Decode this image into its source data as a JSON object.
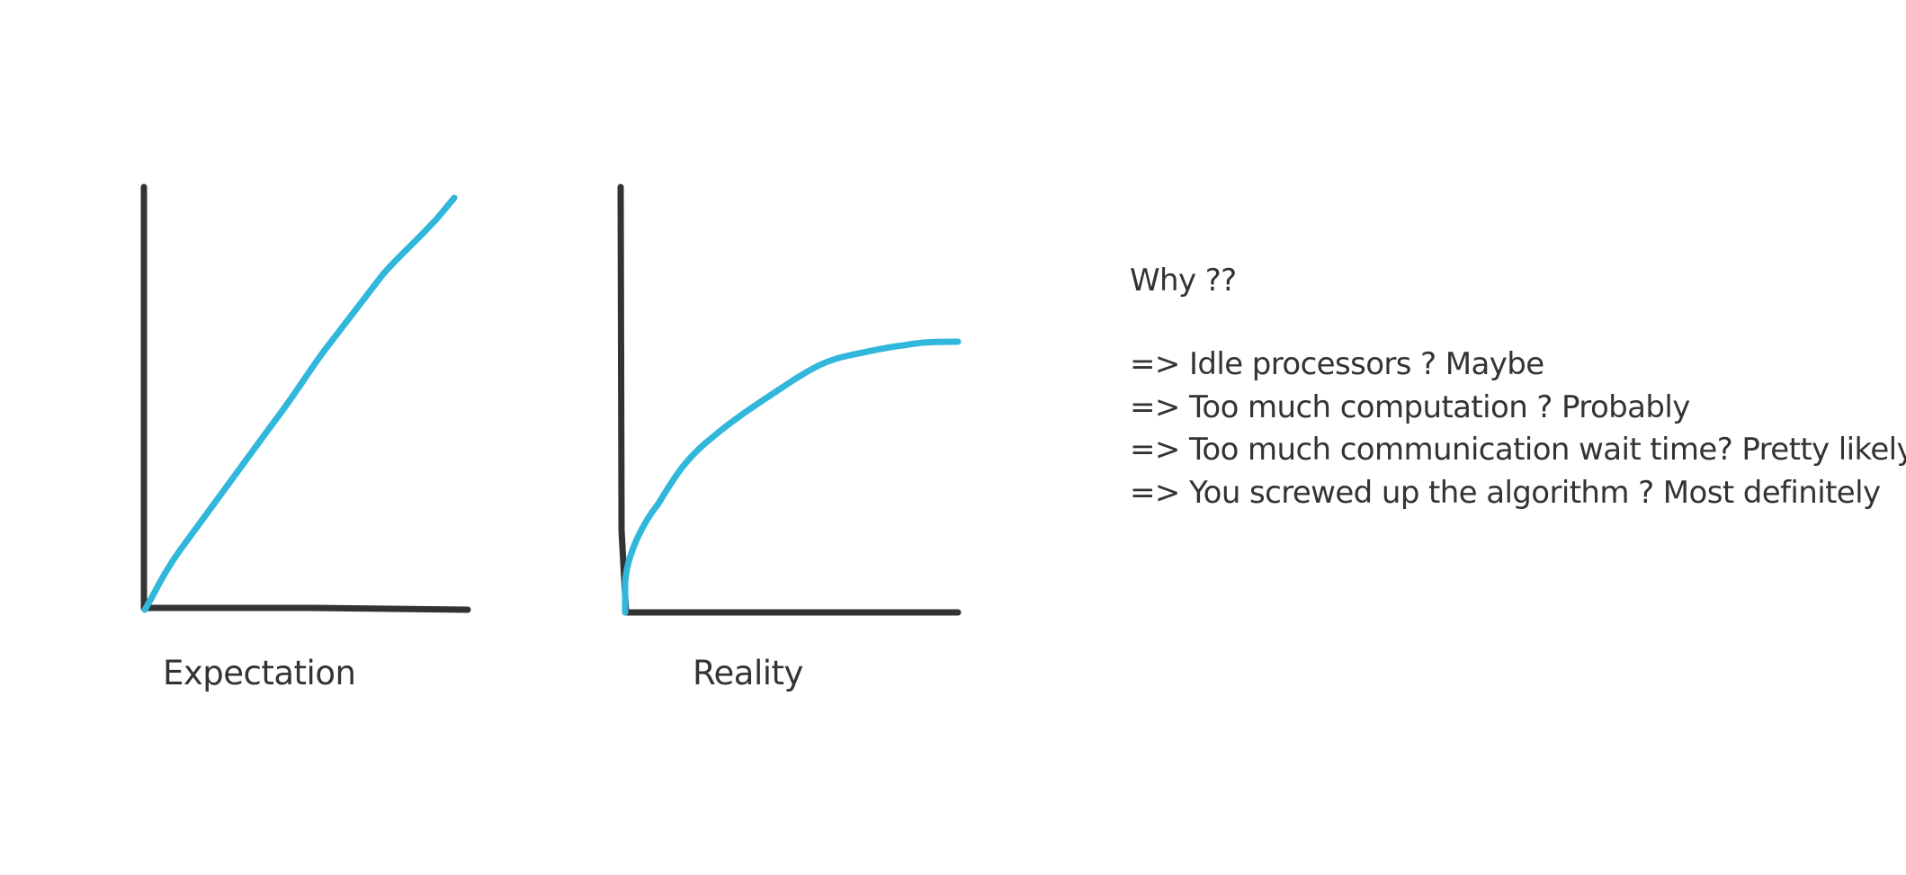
{
  "colors": {
    "ink": "#333333",
    "curve": "#31b7dc",
    "background": "#ffffff"
  },
  "panels": {
    "expectation": {
      "label": "Expectation",
      "curve_shape": "linear"
    },
    "reality": {
      "label": "Reality",
      "curve_shape": "saturating"
    }
  },
  "notes": {
    "title": "Why ??",
    "items": [
      "=> Idle processors ?  Maybe",
      "=> Too much computation ? Probably",
      "=> Too much communication wait time? Pretty likely",
      "=> You screwed up the algorithm ? Most definitely"
    ]
  }
}
